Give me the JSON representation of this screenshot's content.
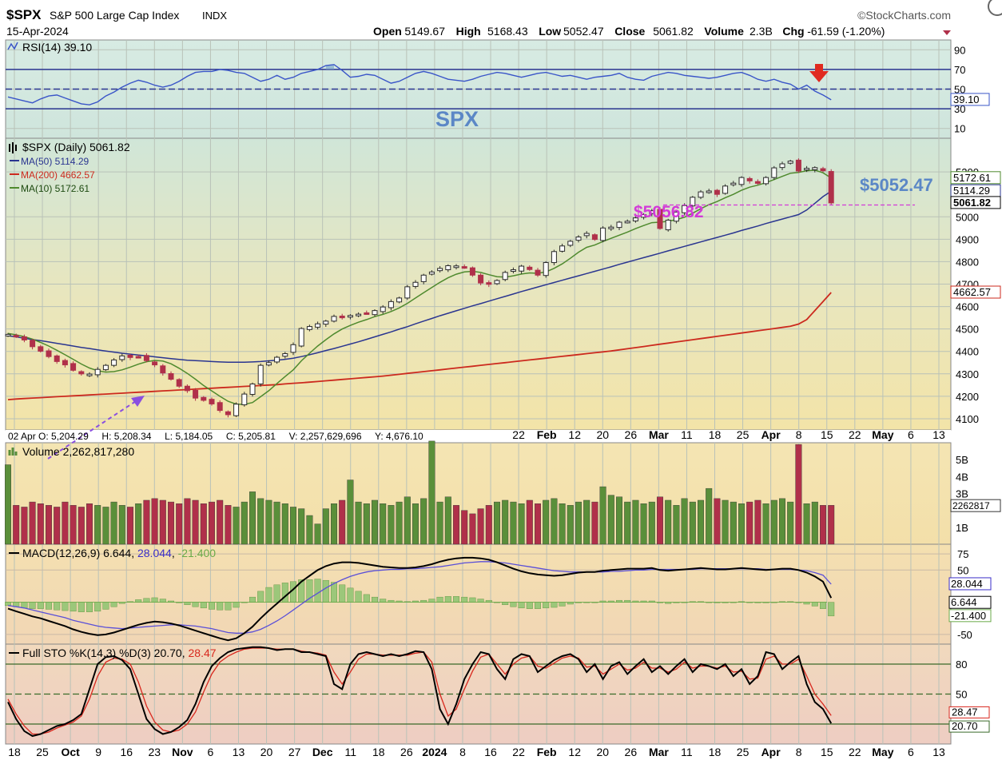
{
  "header": {
    "symbol": "$SPX",
    "name": "S&P 500 Large Cap Index",
    "exchange": "INDX",
    "brand": "©StockCharts.com",
    "date": "15-Apr-2024",
    "ohlc": [
      {
        "label": "Open",
        "value": "5149.67"
      },
      {
        "label": "High",
        "value": "5168.43"
      },
      {
        "label": "Low",
        "value": "5052.47"
      },
      {
        "label": "Close",
        "value": "5061.82"
      },
      {
        "label": "Volume",
        "value": "2.3B"
      },
      {
        "label": "Chg",
        "value": "-61.59 (-1.20%)"
      }
    ]
  },
  "colors": {
    "up": "#5a8f3a",
    "down": "#b0304a",
    "ma50": "#2a3590",
    "ma200": "#cc2a1e",
    "ma10": "#4f8a2e",
    "rsi": "#3a55c8",
    "annotation_magenta": "#d23ad8",
    "annotation_blue": "#5b87c6",
    "annotation_purple": "#8a4fe0",
    "arrow_red": "#e02a20"
  },
  "chart_data": {
    "type": "line",
    "title": "$SPX S&P 500 Large Cap Index INDX",
    "date_axis": {
      "labels": [
        "18",
        "25",
        "Oct",
        "9",
        "16",
        "23",
        "Nov",
        "6",
        "13",
        "20",
        "27",
        "Dec",
        "11",
        "18",
        "26",
        "2024",
        "8",
        "16",
        "22",
        "Feb",
        "12",
        "20",
        "26",
        "Mar",
        "11",
        "18",
        "25",
        "Apr",
        "8",
        "15",
        "22",
        "May",
        "6",
        "13"
      ],
      "bold": [
        "Oct",
        "Nov",
        "Dec",
        "2024",
        "Feb",
        "Mar",
        "Apr",
        "May"
      ]
    },
    "rsi": {
      "legend": "RSI(14) 39.10",
      "value_label": "39.10",
      "ticks": [
        "90",
        "70",
        "50",
        "30",
        "10"
      ],
      "levels": [
        70,
        50,
        30
      ],
      "ylim": [
        0,
        100
      ],
      "values": [
        42,
        40,
        38,
        36,
        40,
        43,
        44,
        41,
        38,
        35,
        34,
        37,
        43,
        47,
        52,
        56,
        59,
        57,
        54,
        52,
        54,
        58,
        63,
        67,
        68,
        68,
        70,
        69,
        67,
        66,
        62,
        58,
        60,
        64,
        60,
        62,
        66,
        68,
        70,
        74,
        75,
        69,
        62,
        63,
        65,
        64,
        60,
        56,
        58,
        62,
        66,
        68,
        66,
        63,
        60,
        59,
        58,
        60,
        63,
        65,
        67,
        66,
        64,
        62,
        64,
        66,
        67,
        65,
        63,
        64,
        62,
        60,
        62,
        63,
        64,
        66,
        62,
        60,
        59,
        63,
        65,
        67,
        66,
        64,
        63,
        62,
        61,
        62,
        64,
        66,
        67,
        64,
        60,
        58,
        60,
        57,
        55,
        50,
        54,
        48,
        44,
        39.1
      ]
    },
    "annotation_text": "SPX",
    "price": {
      "legend": "$SPX (Daily) 5061.82",
      "ylim": [
        4050,
        5350
      ],
      "ticks": [
        "5200",
        "5000",
        "4900",
        "4800",
        "4700",
        "4600",
        "4500",
        "4400",
        "4300",
        "4200",
        "4100"
      ],
      "value_labels": [
        {
          "text": "5172.61",
          "v": 5172.61
        },
        {
          "text": "5114.29",
          "v": 5114.29
        },
        {
          "text": "5061.82",
          "v": 5061.82
        },
        {
          "text": "4662.57",
          "v": 4662.57
        }
      ],
      "support_label": "$5052.47",
      "support_value": 5052.47,
      "prior_label": "$5056.82",
      "ohlc_readout": "02 Apr O: 5,204.29     H: 5,208.34     L: 5,184.05     C: 5,205.81     V: 2,257,629,696     Y: 4,676.10",
      "close": [
        4476,
        4468,
        4451,
        4421,
        4401,
        4377,
        4355,
        4340,
        4316,
        4300,
        4299,
        4320,
        4338,
        4362,
        4380,
        4373,
        4376,
        4359,
        4340,
        4304,
        4276,
        4245,
        4225,
        4192,
        4182,
        4166,
        4137,
        4118,
        4165,
        4210,
        4255,
        4338,
        4350,
        4374,
        4390,
        4430,
        4502,
        4511,
        4523,
        4535,
        4556,
        4550,
        4560,
        4566,
        4570,
        4582,
        4598,
        4622,
        4638,
        4688,
        4708,
        4740,
        4754,
        4770,
        4782,
        4781,
        4774,
        4740,
        4705,
        4699,
        4716,
        4752,
        4764,
        4780,
        4765,
        4740,
        4796,
        4845,
        4870,
        4891,
        4910,
        4926,
        4899,
        4950,
        4954,
        4976,
        4980,
        4995,
        5010,
        5027,
        4948,
        4985,
        5021,
        5050,
        5087,
        5111,
        5115,
        5100,
        5137,
        5150,
        5175,
        5160,
        5149,
        5175,
        5218,
        5236,
        5248,
        5204,
        5216,
        5219,
        5205,
        5061.82
      ],
      "series": [
        {
          "name": "MA(50) 5114.29",
          "values": [
            4470,
            4465,
            4459,
            4453,
            4448,
            4442,
            4436,
            4430,
            4424,
            4418,
            4413,
            4407,
            4402,
            4397,
            4392,
            4388,
            4384,
            4380,
            4376,
            4372,
            4368,
            4364,
            4361,
            4359,
            4357,
            4355,
            4353,
            4352,
            4352,
            4352,
            4353,
            4355,
            4358,
            4361,
            4365,
            4370,
            4377,
            4385,
            4394,
            4404,
            4413,
            4423,
            4433,
            4443,
            4454,
            4465,
            4476,
            4487,
            4499,
            4510,
            4523,
            4535,
            4547,
            4559,
            4570,
            4581,
            4592,
            4603,
            4613,
            4624,
            4635,
            4645,
            4656,
            4667,
            4677,
            4687,
            4697,
            4707,
            4717,
            4727,
            4737,
            4747,
            4757,
            4767,
            4777,
            4788,
            4798,
            4808,
            4818,
            4828,
            4838,
            4848,
            4858,
            4868,
            4878,
            4888,
            4898,
            4908,
            4918,
            4928,
            4939,
            4949,
            4959,
            4970,
            4980,
            4990,
            5000,
            5010,
            5030,
            5060,
            5090,
            5114.29
          ]
        },
        {
          "name": "MA(200) 4662.57",
          "values": [
            4185,
            4188,
            4190,
            4192,
            4194,
            4196,
            4198,
            4200,
            4202,
            4204,
            4206,
            4208,
            4210,
            4212,
            4214,
            4216,
            4218,
            4220,
            4222,
            4224,
            4226,
            4228,
            4230,
            4232,
            4234,
            4236,
            4238,
            4240,
            4242,
            4244,
            4246,
            4248,
            4250,
            4252,
            4255,
            4258,
            4260,
            4263,
            4266,
            4269,
            4272,
            4275,
            4278,
            4281,
            4284,
            4287,
            4290,
            4294,
            4298,
            4302,
            4306,
            4310,
            4314,
            4318,
            4322,
            4326,
            4330,
            4334,
            4338,
            4342,
            4346,
            4350,
            4354,
            4358,
            4362,
            4366,
            4370,
            4374,
            4378,
            4382,
            4386,
            4390,
            4394,
            4398,
            4402,
            4407,
            4412,
            4417,
            4422,
            4427,
            4432,
            4437,
            4442,
            4447,
            4452,
            4457,
            4462,
            4467,
            4472,
            4477,
            4482,
            4487,
            4492,
            4497,
            4502,
            4507,
            4512,
            4522,
            4542,
            4582,
            4622,
            4662.57
          ]
        },
        {
          "name": "MA(10) 5172.61",
          "values": [
            4480,
            4474,
            4466,
            4455,
            4440,
            4424,
            4405,
            4385,
            4365,
            4344,
            4326,
            4314,
            4308,
            4310,
            4318,
            4330,
            4343,
            4354,
            4360,
            4357,
            4345,
            4325,
            4302,
            4276,
            4248,
            4224,
            4200,
            4178,
            4165,
            4164,
            4172,
            4198,
            4225,
            4257,
            4288,
            4318,
            4358,
            4392,
            4424,
            4452,
            4478,
            4500,
            4516,
            4530,
            4542,
            4555,
            4565,
            4578,
            4594,
            4614,
            4638,
            4662,
            4685,
            4708,
            4728,
            4744,
            4754,
            4757,
            4752,
            4742,
            4733,
            4731,
            4737,
            4745,
            4750,
            4748,
            4754,
            4770,
            4790,
            4815,
            4842,
            4864,
            4874,
            4890,
            4904,
            4918,
            4932,
            4947,
            4961,
            4974,
            4976,
            4980,
            4987,
            4998,
            5016,
            5036,
            5054,
            5068,
            5085,
            5100,
            5118,
            5132,
            5141,
            5152,
            5166,
            5180,
            5194,
            5198,
            5205,
            5208,
            5196,
            5172.61
          ]
        }
      ]
    },
    "volume": {
      "legend": "Volume 2,262,817,280",
      "value_label": "2262817",
      "ticks": [
        "5B",
        "4B",
        "3B",
        "1B"
      ],
      "ylim": [
        0,
        6
      ],
      "values": [
        4.7,
        2.3,
        2.2,
        2.5,
        2.4,
        2.3,
        2.2,
        2.5,
        2.3,
        2.2,
        2.4,
        2.3,
        2.2,
        2.5,
        2.3,
        2.2,
        2.4,
        2.6,
        2.7,
        2.6,
        2.5,
        2.4,
        2.7,
        2.6,
        2.4,
        2.5,
        2.6,
        2.3,
        2.2,
        2.5,
        3.1,
        2.7,
        2.6,
        2.5,
        2.4,
        2.2,
        2.1,
        1.7,
        1.2,
        2.1,
        2.4,
        2.6,
        3.8,
        2.5,
        2.4,
        2.6,
        2.4,
        2.3,
        2.5,
        2.8,
        2.4,
        2.7,
        6.1,
        2.5,
        2.8,
        2.3,
        2.0,
        1.8,
        2.1,
        2.3,
        2.5,
        2.6,
        2.5,
        2.4,
        2.6,
        2.4,
        2.6,
        2.7,
        2.4,
        2.3,
        2.5,
        2.6,
        2.5,
        3.4,
        2.9,
        2.8,
        2.5,
        2.6,
        2.4,
        2.5,
        2.8,
        2.6,
        2.3,
        2.7,
        2.5,
        2.6,
        3.3,
        2.7,
        2.6,
        2.5,
        2.4,
        2.5,
        2.6,
        2.4,
        2.6,
        2.7,
        2.5,
        5.9,
        2.4,
        2.5,
        2.3,
        2.3
      ]
    },
    "macd": {
      "legend": "MACD(12,26,9)",
      "legend_values": [
        "6.644",
        "28.044",
        "-21.400"
      ],
      "value_labels": [
        {
          "text": "28.044",
          "v": 28.044
        },
        {
          "text": "6.644",
          "v": 6.644
        },
        {
          "text": "-21.400",
          "v": -21.4
        }
      ],
      "ticks": [
        {
          "text": "75",
          "v": 75
        },
        {
          "text": "50",
          "v": 50
        },
        {
          "text": "-50",
          "v": -50
        }
      ],
      "ylim": [
        -65,
        90
      ],
      "macd": [
        -10,
        -14,
        -18,
        -22,
        -25,
        -29,
        -33,
        -37,
        -42,
        -46,
        -49,
        -51,
        -50,
        -47,
        -43,
        -39,
        -35,
        -32,
        -30,
        -31,
        -33,
        -36,
        -40,
        -44,
        -48,
        -52,
        -56,
        -59,
        -56,
        -48,
        -38,
        -25,
        -13,
        -2,
        9,
        20,
        32,
        41,
        50,
        56,
        60,
        62,
        62,
        61,
        59,
        57,
        55,
        54,
        53,
        53,
        54,
        56,
        59,
        63,
        66,
        68,
        69,
        69,
        68,
        66,
        62,
        57,
        52,
        48,
        45,
        43,
        42,
        41,
        42,
        44,
        46,
        47,
        47,
        49,
        50,
        51,
        52,
        52,
        52,
        53,
        50,
        49,
        50,
        51,
        52,
        53,
        52,
        51,
        51,
        52,
        53,
        52,
        51,
        50,
        51,
        52,
        52,
        50,
        46,
        40,
        32,
        6.644
      ],
      "signal": [
        -5,
        -7,
        -9,
        -12,
        -15,
        -18,
        -21,
        -24,
        -28,
        -31,
        -34,
        -37,
        -39,
        -40,
        -41,
        -40,
        -39,
        -38,
        -37,
        -36,
        -35,
        -35,
        -36,
        -37,
        -39,
        -41,
        -44,
        -47,
        -48,
        -48,
        -46,
        -42,
        -36,
        -29,
        -21,
        -12,
        -3,
        6,
        14,
        22,
        29,
        35,
        40,
        44,
        47,
        49,
        50,
        51,
        51,
        52,
        52,
        53,
        54,
        55,
        57,
        59,
        61,
        62,
        63,
        63,
        62,
        61,
        59,
        57,
        55,
        53,
        51,
        49,
        48,
        47,
        47,
        47,
        47,
        47,
        48,
        48,
        49,
        50,
        50,
        51,
        51,
        51,
        51,
        51,
        51,
        52,
        52,
        52,
        52,
        52,
        52,
        52,
        52,
        51,
        51,
        51,
        51,
        50,
        49,
        46,
        42,
        28.044
      ]
    },
    "sto": {
      "legend": "Full STO %K(14,3) %D(3)",
      "legend_values": [
        "20.70",
        "28.47"
      ],
      "value_labels": [
        {
          "text": "28.47",
          "v": 28.47
        },
        {
          "text": "20.70",
          "v": 20.7
        }
      ],
      "ticks": [
        {
          "text": "80",
          "v": 80
        },
        {
          "text": "50",
          "v": 50
        }
      ],
      "levels": [
        80,
        50,
        20
      ],
      "ylim": [
        0,
        100
      ],
      "k": [
        42,
        25,
        13,
        8,
        10,
        14,
        18,
        20,
        24,
        30,
        55,
        80,
        87,
        88,
        84,
        75,
        50,
        25,
        15,
        10,
        12,
        17,
        24,
        40,
        62,
        78,
        86,
        92,
        95,
        96,
        97,
        97,
        96,
        94,
        95,
        95,
        92,
        92,
        90,
        88,
        60,
        55,
        80,
        90,
        92,
        90,
        88,
        90,
        88,
        90,
        93,
        92,
        75,
        35,
        20,
        40,
        65,
        80,
        92,
        90,
        75,
        65,
        85,
        90,
        88,
        72,
        78,
        84,
        88,
        90,
        85,
        72,
        80,
        65,
        78,
        82,
        70,
        78,
        85,
        72,
        78,
        70,
        78,
        85,
        72,
        80,
        78,
        75,
        80,
        68,
        75,
        60,
        68,
        92,
        90,
        75,
        82,
        88,
        60,
        42,
        35,
        20.7
      ],
      "d": [
        45,
        30,
        18,
        10,
        10,
        12,
        16,
        19,
        22,
        28,
        45,
        68,
        82,
        86,
        85,
        80,
        62,
        38,
        22,
        14,
        12,
        14,
        20,
        32,
        52,
        70,
        82,
        88,
        92,
        95,
        96,
        96,
        96,
        95,
        95,
        95,
        93,
        92,
        91,
        89,
        72,
        60,
        72,
        85,
        90,
        90,
        89,
        89,
        89,
        89,
        91,
        92,
        82,
        50,
        28,
        35,
        55,
        73,
        87,
        90,
        80,
        70,
        80,
        86,
        88,
        78,
        76,
        81,
        86,
        88,
        86,
        77,
        78,
        70,
        75,
        80,
        74,
        76,
        82,
        76,
        76,
        72,
        75,
        82,
        76,
        78,
        78,
        76,
        78,
        72,
        73,
        65,
        66,
        85,
        88,
        80,
        80,
        85,
        68,
        50,
        40,
        28.47
      ]
    }
  }
}
